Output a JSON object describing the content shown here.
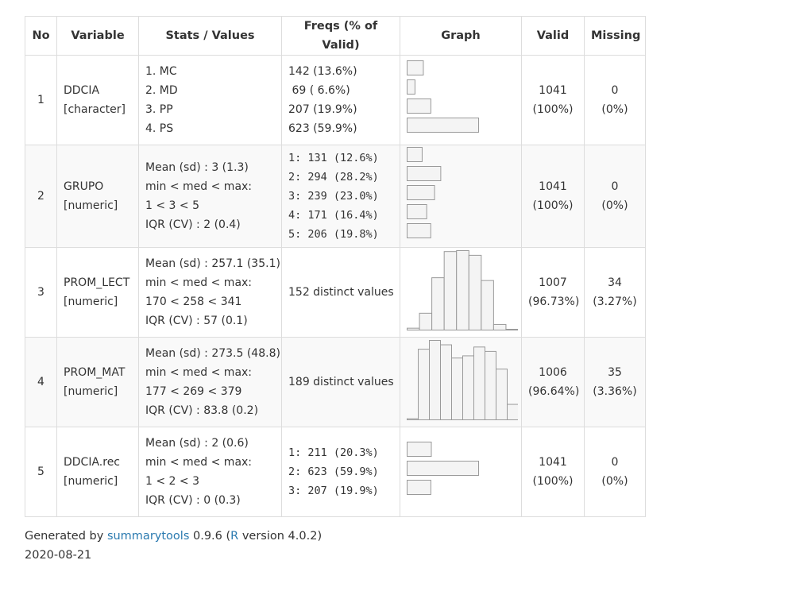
{
  "headers": [
    "No",
    "Variable",
    "Stats / Values",
    "Freqs (% of Valid)",
    "Graph",
    "Valid",
    "Missing"
  ],
  "rows": [
    {
      "no": "1",
      "var_name": "DDCIA",
      "var_type": "[character]",
      "stats": [
        "1. MC",
        "2. MD",
        "3. PP",
        "4. PS"
      ],
      "freqs": [
        "142 (13.6%)",
        " 69 ( 6.6%)",
        "207 (19.9%)",
        "623 (59.9%)"
      ],
      "graph": {
        "type": "bars",
        "values": [
          13.6,
          6.6,
          19.9,
          59.9
        ]
      },
      "valid": [
        "1041",
        "(100%)"
      ],
      "missing": [
        "0",
        "(0%)"
      ]
    },
    {
      "no": "2",
      "var_name": "GRUPO",
      "var_type": "[numeric]",
      "stats": [
        "Mean (sd) : 3 (1.3)",
        "min < med < max:",
        "1 < 3 < 5",
        "IQR (CV) : 2 (0.4)"
      ],
      "freqs": [
        "1: 131 (12.6%)",
        "2: 294 (28.2%)",
        "3: 239 (23.0%)",
        "4: 171 (16.4%)",
        "5: 206 (19.8%)"
      ],
      "graph": {
        "type": "bars",
        "values": [
          12.6,
          28.2,
          23.0,
          16.4,
          19.8
        ]
      },
      "valid": [
        "1041",
        "(100%)"
      ],
      "missing": [
        "0",
        "(0%)"
      ]
    },
    {
      "no": "3",
      "var_name": "PROM_LECT",
      "var_type": "[numeric]",
      "stats": [
        "Mean (sd) : 257.1 (35.1)",
        "min < med < max:",
        "170 < 258 < 341",
        "IQR (CV) : 57 (0.1)"
      ],
      "freqs": [
        "152 distinct values"
      ],
      "graph": {
        "type": "hist",
        "values": [
          2,
          18,
          56,
          84,
          85,
          80,
          53,
          6,
          0
        ]
      },
      "valid": [
        "1007",
        "(96.73%)"
      ],
      "missing": [
        "34",
        "(3.27%)"
      ]
    },
    {
      "no": "4",
      "var_name": "PROM_MAT",
      "var_type": "[numeric]",
      "stats": [
        "Mean (sd) : 273.5 (48.8)",
        "min < med < max:",
        "177 < 269 < 379",
        "IQR (CV) : 83.8 (0.2)"
      ],
      "freqs": [
        "189 distinct values"
      ],
      "graph": {
        "type": "hist",
        "values": [
          1,
          64,
          72,
          68,
          56,
          58,
          66,
          62,
          46,
          14
        ]
      },
      "valid": [
        "1006",
        "(96.64%)"
      ],
      "missing": [
        "35",
        "(3.36%)"
      ]
    },
    {
      "no": "5",
      "var_name": "DDCIA.rec",
      "var_type": "[numeric]",
      "stats": [
        "Mean (sd) : 2 (0.6)",
        "min < med < max:",
        "1 < 2 < 3",
        "IQR (CV) : 0 (0.3)"
      ],
      "freqs": [
        "1: 211 (20.3%)",
        "2: 623 (59.9%)",
        "3: 207 (19.9%)"
      ],
      "graph": {
        "type": "bars",
        "values": [
          20.3,
          59.9,
          19.9
        ]
      },
      "valid": [
        "1041",
        "(100%)"
      ],
      "missing": [
        "0",
        "(0%)"
      ]
    }
  ],
  "footer": {
    "prefix": "Generated by ",
    "link1": "summarytools",
    "mid1": " 0.9.6 (",
    "link2": "R",
    "mid2": " version 4.0.2)",
    "date": "2020-08-21"
  },
  "colors": {
    "link": "#2a7ab0",
    "border": "#dddddd",
    "bar_stroke": "#9a9a9a",
    "bar_fill": "#f4f4f4"
  }
}
